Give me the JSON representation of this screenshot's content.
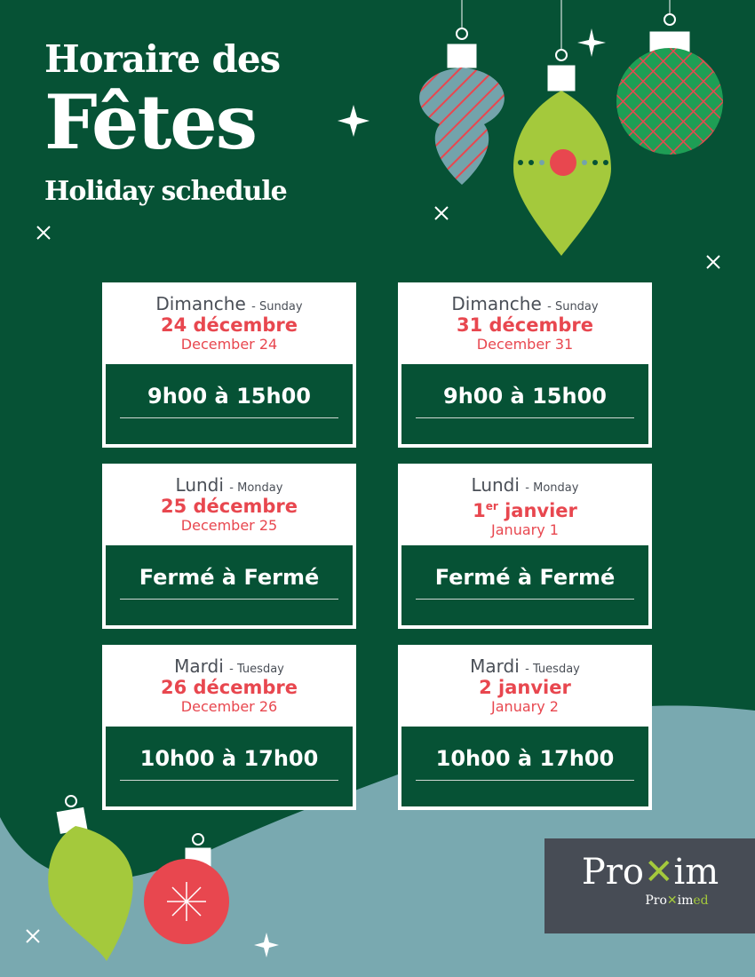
{
  "header": {
    "line1": "Horaire des",
    "line2": "Fêtes",
    "line3": "Holiday schedule"
  },
  "colors": {
    "background": "#065235",
    "accent": "#e8474f",
    "teal": "#79a9b0",
    "lime": "#a4c93c",
    "logo_bg": "#474c55"
  },
  "cards": [
    {
      "day_fr": "Dimanche",
      "day_en": "- Sunday",
      "date_fr": "24 décembre",
      "date_en": "December 24",
      "hours": "9h00 à 15h00"
    },
    {
      "day_fr": "Dimanche",
      "day_en": "- Sunday",
      "date_fr": "31 décembre",
      "date_en": "December 31",
      "hours": "9h00 à 15h00"
    },
    {
      "day_fr": "Lundi",
      "day_en": "- Monday",
      "date_fr": "25 décembre",
      "date_en": "December 25",
      "hours": "Fermé à Fermé"
    },
    {
      "day_fr": "Lundi",
      "day_en": "- Monday",
      "date_fr": "1",
      "date_sup": "er",
      "date_fr_rest": " janvier",
      "date_en": "January 1",
      "hours": "Fermé à Fermé"
    },
    {
      "day_fr": "Mardi",
      "day_en": "- Tuesday",
      "date_fr": "26 décembre",
      "date_en": "December 26",
      "hours": "10h00 à 17h00"
    },
    {
      "day_fr": "Mardi",
      "day_en": "- Tuesday",
      "date_fr": "2 janvier",
      "date_en": "January 2",
      "hours": "10h00 à 17h00"
    }
  ],
  "logo": {
    "name": "Proxim",
    "sub": "Proximed"
  }
}
